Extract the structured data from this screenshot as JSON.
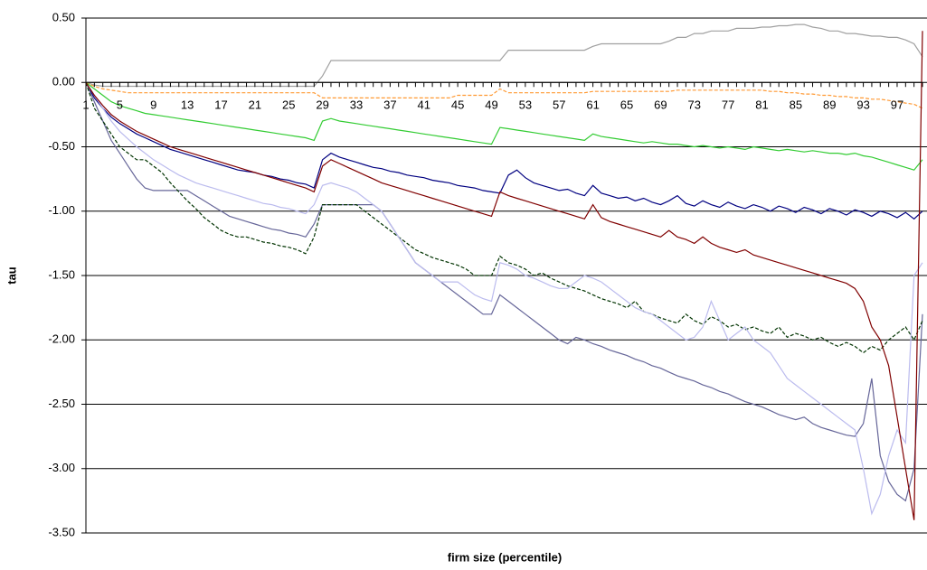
{
  "chart_data": {
    "type": "line",
    "xlabel": "firm size (percentile)",
    "ylabel": "tau",
    "categories": [
      "1",
      null,
      null,
      null,
      "5",
      null,
      null,
      null,
      "9",
      null,
      null,
      null,
      "13",
      null,
      null,
      null,
      "17",
      null,
      null,
      null,
      "21",
      null,
      null,
      null,
      "25",
      null,
      null,
      null,
      "29",
      null,
      null,
      null,
      "33",
      null,
      null,
      null,
      "37",
      null,
      null,
      null,
      "41",
      null,
      null,
      null,
      "45",
      null,
      null,
      null,
      "49",
      null,
      null,
      null,
      "53",
      null,
      null,
      null,
      "57",
      null,
      null,
      null,
      "61",
      null,
      null,
      null,
      "65",
      null,
      null,
      null,
      "69",
      null,
      null,
      null,
      "73",
      null,
      null,
      null,
      "77",
      null,
      null,
      null,
      "81",
      null,
      null,
      null,
      "85",
      null,
      null,
      null,
      "89",
      null,
      null,
      null,
      "93",
      null,
      null,
      null,
      "97",
      null,
      null,
      null
    ],
    "ylim": [
      -3.5,
      0.5
    ],
    "yticks": [
      {
        "value": 0.5,
        "label": "0.50"
      },
      {
        "value": 0,
        "label": "0.00"
      },
      {
        "value": -0.5,
        "label": "-0.50"
      },
      {
        "value": -1,
        "label": "-1.00"
      },
      {
        "value": -1.5,
        "label": "-1.50"
      },
      {
        "value": -2,
        "label": "-2.00"
      },
      {
        "value": -2.5,
        "label": "-2.50"
      },
      {
        "value": -3,
        "label": "-3.00"
      },
      {
        "value": -3.5,
        "label": "-3.50"
      }
    ],
    "grid": true,
    "series": [
      {
        "color": "#000080",
        "values": [
          0,
          -0.12,
          -0.2,
          -0.27,
          -0.32,
          -0.36,
          -0.4,
          -0.43,
          -0.46,
          -0.49,
          -0.52,
          -0.54,
          -0.56,
          -0.58,
          -0.6,
          -0.62,
          -0.64,
          -0.66,
          -0.68,
          -0.69,
          -0.7,
          -0.72,
          -0.73,
          -0.75,
          -0.76,
          -0.78,
          -0.79,
          -0.82,
          -0.6,
          -0.55,
          -0.58,
          -0.6,
          -0.62,
          -0.64,
          -0.66,
          -0.67,
          -0.69,
          -0.7,
          -0.72,
          -0.73,
          -0.74,
          -0.76,
          -0.77,
          -0.78,
          -0.8,
          -0.81,
          -0.82,
          -0.84,
          -0.85,
          -0.86,
          -0.72,
          -0.68,
          -0.74,
          -0.78,
          -0.8,
          -0.82,
          -0.84,
          -0.83,
          -0.86,
          -0.88,
          -0.8,
          -0.86,
          -0.88,
          -0.9,
          -0.89,
          -0.92,
          -0.9,
          -0.93,
          -0.95,
          -0.92,
          -0.88,
          -0.94,
          -0.96,
          -0.92,
          -0.95,
          -0.97,
          -0.93,
          -0.96,
          -0.98,
          -0.95,
          -0.97,
          -1.0,
          -0.96,
          -0.98,
          -1.01,
          -0.97,
          -0.99,
          -1.02,
          -0.98,
          -1.0,
          -1.03,
          -0.99,
          -1.01,
          -1.04,
          -1.0,
          -1.02,
          -1.05,
          -1.01,
          -1.06,
          -1.0
        ]
      },
      {
        "color": "#666699",
        "values": [
          0,
          -0.15,
          -0.3,
          -0.45,
          -0.55,
          -0.65,
          -0.75,
          -0.82,
          -0.84,
          -0.84,
          -0.84,
          -0.84,
          -0.84,
          -0.88,
          -0.92,
          -0.96,
          -1.0,
          -1.04,
          -1.06,
          -1.08,
          -1.1,
          -1.12,
          -1.14,
          -1.15,
          -1.17,
          -1.18,
          -1.2,
          -1.1,
          -0.95,
          -0.95,
          -0.95,
          -0.95,
          -0.95,
          -0.95,
          -0.95,
          -1.0,
          -1.1,
          -1.2,
          -1.3,
          -1.4,
          -1.45,
          -1.5,
          -1.55,
          -1.6,
          -1.65,
          -1.7,
          -1.75,
          -1.8,
          -1.8,
          -1.65,
          -1.7,
          -1.75,
          -1.8,
          -1.85,
          -1.9,
          -1.95,
          -2.0,
          -2.03,
          -1.98,
          -2.0,
          -2.03,
          -2.05,
          -2.08,
          -2.1,
          -2.12,
          -2.15,
          -2.17,
          -2.2,
          -2.22,
          -2.25,
          -2.28,
          -2.3,
          -2.32,
          -2.35,
          -2.37,
          -2.4,
          -2.42,
          -2.45,
          -2.48,
          -2.5,
          -2.52,
          -2.55,
          -2.58,
          -2.6,
          -2.62,
          -2.6,
          -2.65,
          -2.68,
          -2.7,
          -2.72,
          -2.74,
          -2.75,
          -2.65,
          -2.3,
          -2.9,
          -3.1,
          -3.2,
          -3.25,
          -3.0,
          -1.8
        ]
      },
      {
        "color": "#003300",
        "dashed": true,
        "values": [
          0,
          -0.2,
          -0.3,
          -0.4,
          -0.5,
          -0.55,
          -0.6,
          -0.6,
          -0.65,
          -0.7,
          -0.78,
          -0.85,
          -0.92,
          -0.98,
          -1.05,
          -1.1,
          -1.15,
          -1.18,
          -1.2,
          -1.2,
          -1.22,
          -1.24,
          -1.25,
          -1.27,
          -1.28,
          -1.3,
          -1.33,
          -1.2,
          -0.95,
          -0.95,
          -0.95,
          -0.95,
          -0.95,
          -1.0,
          -1.05,
          -1.1,
          -1.15,
          -1.2,
          -1.25,
          -1.3,
          -1.33,
          -1.36,
          -1.38,
          -1.4,
          -1.42,
          -1.45,
          -1.5,
          -1.5,
          -1.5,
          -1.35,
          -1.4,
          -1.42,
          -1.45,
          -1.5,
          -1.48,
          -1.52,
          -1.55,
          -1.58,
          -1.6,
          -1.62,
          -1.65,
          -1.68,
          -1.7,
          -1.72,
          -1.75,
          -1.7,
          -1.78,
          -1.8,
          -1.83,
          -1.85,
          -1.87,
          -1.8,
          -1.85,
          -1.88,
          -1.82,
          -1.85,
          -1.9,
          -1.88,
          -1.92,
          -1.9,
          -1.93,
          -1.95,
          -1.9,
          -1.98,
          -1.95,
          -1.97,
          -2.0,
          -1.98,
          -2.02,
          -2.05,
          -2.02,
          -2.05,
          -2.1,
          -2.05,
          -2.08,
          -2.0,
          -1.95,
          -1.9,
          -2.0,
          -1.85
        ]
      },
      {
        "color": "#a0a0a0",
        "values": [
          0,
          -0.02,
          -0.03,
          -0.03,
          -0.03,
          -0.03,
          -0.03,
          -0.03,
          -0.03,
          -0.03,
          -0.03,
          -0.03,
          -0.03,
          -0.03,
          -0.03,
          -0.03,
          -0.03,
          -0.03,
          -0.03,
          -0.03,
          -0.03,
          -0.03,
          -0.03,
          -0.03,
          -0.03,
          -0.03,
          -0.03,
          -0.03,
          0.05,
          0.17,
          0.17,
          0.17,
          0.17,
          0.17,
          0.17,
          0.17,
          0.17,
          0.17,
          0.17,
          0.17,
          0.17,
          0.17,
          0.17,
          0.17,
          0.17,
          0.17,
          0.17,
          0.17,
          0.17,
          0.17,
          0.25,
          0.25,
          0.25,
          0.25,
          0.25,
          0.25,
          0.25,
          0.25,
          0.25,
          0.25,
          0.28,
          0.3,
          0.3,
          0.3,
          0.3,
          0.3,
          0.3,
          0.3,
          0.3,
          0.32,
          0.35,
          0.35,
          0.38,
          0.38,
          0.4,
          0.4,
          0.4,
          0.42,
          0.42,
          0.42,
          0.43,
          0.43,
          0.44,
          0.44,
          0.45,
          0.45,
          0.43,
          0.42,
          0.4,
          0.4,
          0.38,
          0.38,
          0.37,
          0.36,
          0.36,
          0.35,
          0.35,
          0.33,
          0.3,
          0.2
        ]
      },
      {
        "color": "#ff9933",
        "dashed": true,
        "values": [
          0,
          -0.03,
          -0.05,
          -0.06,
          -0.07,
          -0.08,
          -0.08,
          -0.08,
          -0.08,
          -0.08,
          -0.08,
          -0.08,
          -0.08,
          -0.08,
          -0.08,
          -0.08,
          -0.08,
          -0.08,
          -0.08,
          -0.08,
          -0.08,
          -0.08,
          -0.08,
          -0.08,
          -0.08,
          -0.08,
          -0.08,
          -0.08,
          -0.12,
          -0.12,
          -0.12,
          -0.12,
          -0.12,
          -0.12,
          -0.12,
          -0.12,
          -0.12,
          -0.12,
          -0.12,
          -0.12,
          -0.12,
          -0.12,
          -0.12,
          -0.12,
          -0.1,
          -0.1,
          -0.1,
          -0.1,
          -0.1,
          -0.05,
          -0.08,
          -0.08,
          -0.08,
          -0.08,
          -0.08,
          -0.08,
          -0.08,
          -0.08,
          -0.08,
          -0.08,
          -0.07,
          -0.07,
          -0.07,
          -0.07,
          -0.07,
          -0.07,
          -0.07,
          -0.07,
          -0.07,
          -0.07,
          -0.06,
          -0.06,
          -0.06,
          -0.06,
          -0.06,
          -0.06,
          -0.06,
          -0.06,
          -0.06,
          -0.06,
          -0.06,
          -0.07,
          -0.07,
          -0.08,
          -0.08,
          -0.09,
          -0.09,
          -0.1,
          -0.1,
          -0.11,
          -0.11,
          -0.12,
          -0.12,
          -0.13,
          -0.13,
          -0.14,
          -0.15,
          -0.16,
          -0.17,
          -0.2
        ]
      },
      {
        "color": "#bbbbee",
        "values": [
          0,
          -0.1,
          -0.2,
          -0.3,
          -0.38,
          -0.44,
          -0.5,
          -0.55,
          -0.6,
          -0.64,
          -0.68,
          -0.72,
          -0.75,
          -0.78,
          -0.8,
          -0.82,
          -0.84,
          -0.86,
          -0.88,
          -0.9,
          -0.92,
          -0.94,
          -0.95,
          -0.97,
          -0.98,
          -1.0,
          -1.02,
          -0.95,
          -0.8,
          -0.78,
          -0.8,
          -0.82,
          -0.85,
          -0.9,
          -0.95,
          -1.0,
          -1.1,
          -1.2,
          -1.3,
          -1.4,
          -1.45,
          -1.5,
          -1.55,
          -1.55,
          -1.55,
          -1.6,
          -1.65,
          -1.68,
          -1.7,
          -1.4,
          -1.42,
          -1.45,
          -1.5,
          -1.52,
          -1.55,
          -1.58,
          -1.6,
          -1.6,
          -1.55,
          -1.5,
          -1.52,
          -1.55,
          -1.6,
          -1.65,
          -1.7,
          -1.75,
          -1.78,
          -1.8,
          -1.85,
          -1.9,
          -1.95,
          -2.0,
          -1.98,
          -1.9,
          -1.7,
          -1.85,
          -2.0,
          -1.95,
          -1.9,
          -2.0,
          -2.05,
          -2.1,
          -2.2,
          -2.3,
          -2.35,
          -2.4,
          -2.45,
          -2.5,
          -2.55,
          -2.6,
          -2.65,
          -2.7,
          -3.0,
          -3.35,
          -3.2,
          -2.9,
          -2.7,
          -2.8,
          -1.5,
          -1.4
        ]
      },
      {
        "color": "#33cc33",
        "values": [
          0,
          -0.05,
          -0.1,
          -0.15,
          -0.18,
          -0.2,
          -0.22,
          -0.24,
          -0.25,
          -0.26,
          -0.27,
          -0.28,
          -0.29,
          -0.3,
          -0.31,
          -0.32,
          -0.33,
          -0.34,
          -0.35,
          -0.36,
          -0.37,
          -0.38,
          -0.39,
          -0.4,
          -0.41,
          -0.42,
          -0.43,
          -0.45,
          -0.3,
          -0.28,
          -0.3,
          -0.31,
          -0.32,
          -0.33,
          -0.34,
          -0.35,
          -0.36,
          -0.37,
          -0.38,
          -0.39,
          -0.4,
          -0.41,
          -0.42,
          -0.43,
          -0.44,
          -0.45,
          -0.46,
          -0.47,
          -0.48,
          -0.35,
          -0.36,
          -0.37,
          -0.38,
          -0.39,
          -0.4,
          -0.41,
          -0.42,
          -0.43,
          -0.44,
          -0.45,
          -0.4,
          -0.42,
          -0.43,
          -0.44,
          -0.45,
          -0.46,
          -0.47,
          -0.46,
          -0.47,
          -0.48,
          -0.48,
          -0.49,
          -0.5,
          -0.49,
          -0.5,
          -0.51,
          -0.5,
          -0.51,
          -0.52,
          -0.5,
          -0.51,
          -0.52,
          -0.53,
          -0.52,
          -0.53,
          -0.54,
          -0.53,
          -0.54,
          -0.55,
          -0.55,
          -0.56,
          -0.55,
          -0.57,
          -0.58,
          -0.6,
          -0.62,
          -0.64,
          -0.66,
          -0.68,
          -0.6
        ]
      },
      {
        "color": "#800000",
        "values": [
          0,
          -0.1,
          -0.18,
          -0.25,
          -0.3,
          -0.34,
          -0.38,
          -0.41,
          -0.44,
          -0.47,
          -0.5,
          -0.52,
          -0.54,
          -0.56,
          -0.58,
          -0.6,
          -0.62,
          -0.64,
          -0.66,
          -0.68,
          -0.7,
          -0.72,
          -0.74,
          -0.76,
          -0.78,
          -0.8,
          -0.82,
          -0.85,
          -0.65,
          -0.6,
          -0.63,
          -0.66,
          -0.69,
          -0.72,
          -0.75,
          -0.78,
          -0.8,
          -0.82,
          -0.84,
          -0.86,
          -0.88,
          -0.9,
          -0.92,
          -0.94,
          -0.96,
          -0.98,
          -1.0,
          -1.02,
          -1.04,
          -0.85,
          -0.88,
          -0.9,
          -0.92,
          -0.94,
          -0.96,
          -0.98,
          -1.0,
          -1.02,
          -1.04,
          -1.06,
          -0.95,
          -1.05,
          -1.08,
          -1.1,
          -1.12,
          -1.14,
          -1.16,
          -1.18,
          -1.2,
          -1.15,
          -1.2,
          -1.22,
          -1.25,
          -1.2,
          -1.25,
          -1.28,
          -1.3,
          -1.32,
          -1.3,
          -1.34,
          -1.36,
          -1.38,
          -1.4,
          -1.42,
          -1.44,
          -1.46,
          -1.48,
          -1.5,
          -1.52,
          -1.54,
          -1.56,
          -1.6,
          -1.7,
          -1.9,
          -2.0,
          -2.2,
          -2.6,
          -3.0,
          -3.4,
          0.4
        ]
      }
    ]
  }
}
